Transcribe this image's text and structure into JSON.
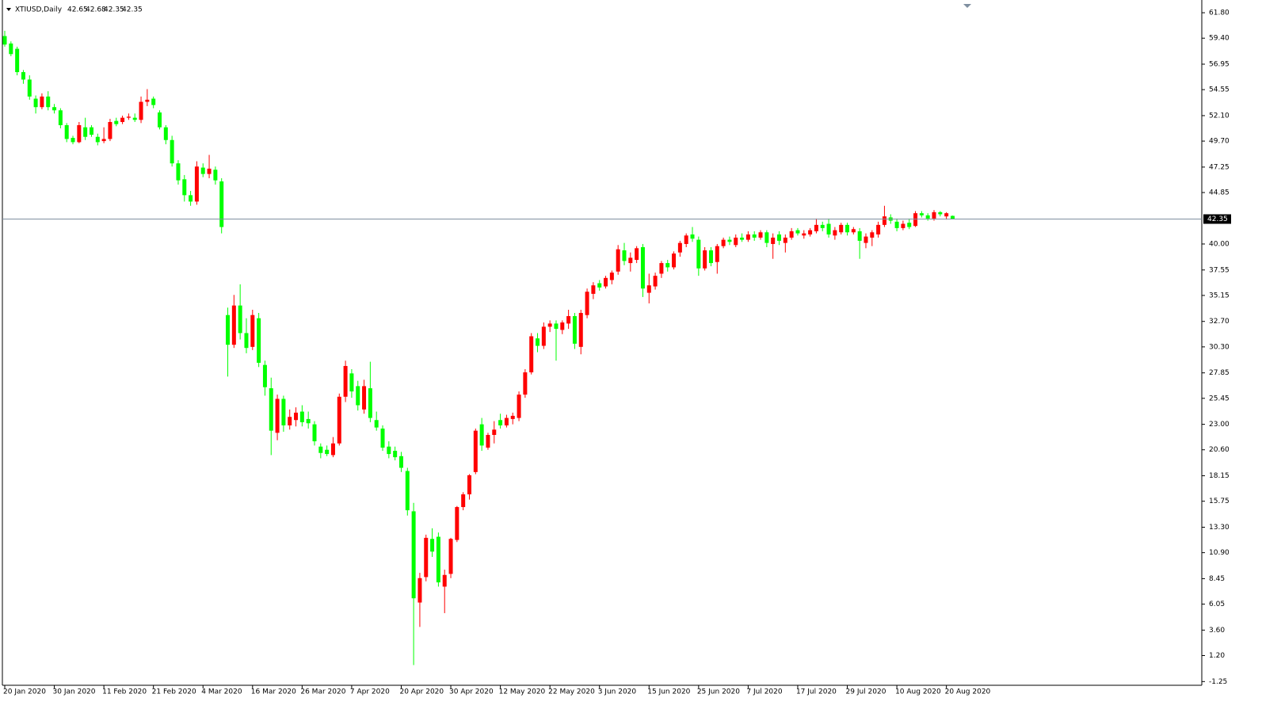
{
  "chart_data": {
    "type": "candlestick",
    "title": "XTIUSD,Daily",
    "up_color": "#ff0000",
    "down_color": "#00ff00",
    "price_line_color": "#7f8fa0",
    "categories": [
      "20 Jan 2020",
      null,
      null,
      null,
      null,
      null,
      null,
      null,
      "30 Jan 2020",
      null,
      null,
      null,
      null,
      null,
      null,
      null,
      "11 Feb 2020",
      null,
      null,
      null,
      null,
      null,
      null,
      null,
      "21 Feb 2020",
      null,
      null,
      null,
      null,
      null,
      null,
      null,
      "4 Mar 2020",
      null,
      null,
      null,
      null,
      null,
      null,
      null,
      "16 Mar 2020",
      null,
      null,
      null,
      null,
      null,
      null,
      null,
      "26 Mar 2020",
      null,
      null,
      null,
      null,
      null,
      null,
      null,
      "7 Apr 2020",
      null,
      null,
      null,
      null,
      null,
      null,
      null,
      "20 Apr 2020",
      null,
      null,
      null,
      null,
      null,
      null,
      null,
      "30 Apr 2020",
      null,
      null,
      null,
      null,
      null,
      null,
      null,
      "12 May 2020",
      null,
      null,
      null,
      null,
      null,
      null,
      null,
      "22 May 2020",
      null,
      null,
      null,
      null,
      null,
      null,
      null,
      "3 Jun 2020",
      null,
      null,
      null,
      null,
      null,
      null,
      null,
      "15 Jun 2020",
      null,
      null,
      null,
      null,
      null,
      null,
      null,
      "25 Jun 2020",
      null,
      null,
      null,
      null,
      null,
      null,
      null,
      "7 Jul 2020",
      null,
      null,
      null,
      null,
      null,
      null,
      null,
      "17 Jul 2020",
      null,
      null,
      null,
      null,
      null,
      null,
      null,
      "29 Jul 2020",
      null,
      null,
      null,
      null,
      null,
      null,
      null,
      "10 Aug 2020",
      null,
      null,
      null,
      null,
      null,
      null,
      null,
      "20 Aug 2020",
      null
    ],
    "open": [
      59.6,
      58.9,
      58.4,
      56.2,
      55.5,
      53.7,
      52.9,
      53.9,
      52.9,
      52.6,
      51.2,
      50.0,
      49.6,
      51.0,
      51.0,
      50.1,
      49.7,
      49.9,
      51.6,
      51.5,
      51.9,
      51.9,
      51.7,
      53.4,
      53.7,
      52.4,
      51.0,
      49.8,
      47.6,
      46.1,
      44.6,
      44.0,
      47.2,
      46.6,
      47.0,
      45.9,
      33.3,
      30.5,
      34.2,
      31.6,
      30.3,
      33.0,
      28.6,
      26.4,
      22.2,
      25.4,
      22.9,
      23.4,
      24.2,
      23.5,
      23.0,
      20.9,
      20.6,
      20.1,
      21.2,
      25.6,
      27.8,
      26.6,
      24.4,
      26.4,
      23.4,
      22.6,
      20.9,
      20.5,
      20.0,
      18.6,
      14.8,
      6.2,
      8.6,
      12.2,
      12.4,
      7.7,
      8.9,
      12.1,
      15.2,
      16.4,
      18.5,
      23.0,
      20.8,
      22.0,
      23.4,
      22.9,
      23.5,
      23.6,
      25.8,
      27.9,
      31.1,
      30.4,
      32.2,
      32.5,
      31.9,
      32.5,
      33.2,
      30.3,
      33.3,
      35.3,
      36.3,
      36.0,
      36.6,
      37.4,
      39.4,
      38.2,
      38.5,
      39.7,
      35.4,
      36.0,
      37.2,
      38.2,
      37.8,
      39.2,
      40.0,
      40.9,
      40.4,
      37.7,
      39.4,
      38.3,
      39.8,
      40.4,
      39.9,
      40.6,
      40.4,
      40.9,
      40.6,
      41.1,
      40.0,
      40.9,
      40.1,
      40.6,
      41.3,
      40.8,
      40.9,
      41.2,
      41.8,
      41.9,
      40.8,
      41.1,
      41.8,
      41.1,
      41.2,
      40.1,
      40.6,
      40.9,
      41.8,
      42.5,
      42.1,
      41.5,
      42.0,
      41.7,
      42.9,
      42.7,
      42.4,
      43.0,
      42.6,
      42.65
    ],
    "high": [
      60.1,
      59.1,
      58.6,
      56.4,
      55.9,
      54.0,
      54.2,
      54.4,
      53.2,
      52.8,
      51.4,
      50.2,
      51.5,
      51.9,
      51.2,
      50.4,
      51.0,
      51.8,
      51.9,
      52.1,
      52.3,
      52.3,
      53.9,
      54.6,
      53.9,
      52.6,
      51.2,
      50.2,
      47.9,
      46.5,
      45.0,
      47.8,
      47.6,
      48.4,
      47.3,
      46.2,
      34.0,
      35.2,
      36.2,
      33.0,
      33.8,
      33.5,
      29.0,
      27.4,
      25.8,
      25.7,
      24.4,
      24.6,
      24.8,
      24.2,
      23.3,
      21.2,
      21.0,
      21.8,
      25.9,
      29.0,
      28.2,
      27.1,
      27.2,
      28.9,
      24.2,
      22.9,
      21.4,
      20.9,
      20.4,
      18.9,
      15.6,
      9.0,
      12.6,
      13.2,
      12.8,
      9.3,
      12.3,
      15.3,
      16.6,
      18.3,
      22.6,
      23.6,
      22.2,
      23.3,
      24.0,
      23.9,
      24.1,
      26.1,
      28.2,
      31.6,
      31.6,
      32.6,
      32.8,
      32.8,
      32.8,
      33.8,
      33.5,
      33.8,
      35.8,
      36.4,
      36.6,
      37.0,
      37.5,
      39.9,
      40.1,
      39.2,
      39.8,
      40.0,
      37.2,
      37.3,
      38.4,
      38.5,
      39.3,
      40.3,
      41.0,
      41.6,
      40.7,
      39.7,
      39.7,
      40.0,
      40.6,
      40.7,
      40.9,
      41.0,
      41.2,
      41.2,
      41.3,
      41.3,
      41.0,
      41.2,
      40.9,
      41.5,
      41.5,
      41.3,
      41.5,
      42.4,
      42.1,
      42.4,
      41.6,
      42.0,
      42.0,
      41.6,
      41.5,
      41.0,
      41.3,
      42.1,
      43.6,
      42.8,
      42.4,
      42.2,
      42.4,
      43.1,
      43.1,
      42.9,
      43.2,
      43.1,
      43.0,
      42.68
    ],
    "low": [
      58.6,
      57.7,
      55.9,
      55.1,
      53.6,
      52.3,
      52.7,
      52.6,
      52.3,
      50.9,
      49.6,
      49.4,
      49.5,
      49.8,
      50.1,
      49.3,
      49.5,
      49.7,
      51.1,
      51.3,
      51.7,
      51.5,
      51.4,
      53.0,
      52.8,
      50.8,
      49.4,
      47.3,
      45.6,
      44.0,
      43.6,
      43.7,
      46.3,
      46.2,
      45.6,
      41.0,
      27.5,
      30.2,
      31.0,
      29.7,
      30.0,
      28.4,
      25.7,
      20.1,
      21.5,
      22.3,
      22.5,
      22.8,
      22.8,
      22.6,
      21.0,
      19.8,
      20.0,
      19.9,
      21.0,
      25.1,
      25.5,
      24.3,
      24.0,
      23.2,
      22.4,
      20.5,
      19.8,
      19.6,
      18.5,
      14.4,
      0.3,
      3.9,
      8.2,
      10.5,
      7.7,
      5.2,
      8.5,
      11.9,
      14.9,
      15.9,
      18.3,
      20.5,
      20.6,
      21.2,
      22.6,
      22.7,
      23.0,
      23.3,
      25.5,
      27.7,
      29.8,
      30.1,
      31.7,
      29.0,
      31.5,
      32.0,
      30.1,
      29.6,
      33.0,
      34.8,
      35.6,
      35.8,
      36.2,
      37.1,
      38.0,
      37.4,
      38.2,
      35.0,
      34.4,
      35.7,
      36.8,
      37.4,
      37.6,
      38.8,
      39.7,
      40.2,
      37.0,
      37.5,
      37.9,
      37.2,
      39.6,
      39.9,
      39.7,
      40.2,
      40.2,
      40.3,
      40.4,
      39.7,
      38.6,
      39.9,
      39.2,
      40.4,
      40.8,
      40.5,
      40.7,
      41.0,
      41.2,
      40.6,
      40.4,
      40.9,
      40.8,
      40.9,
      38.6,
      39.6,
      39.8,
      40.6,
      41.6,
      41.9,
      41.2,
      41.3,
      41.4,
      41.6,
      42.5,
      42.2,
      42.2,
      42.6,
      42.3,
      42.35
    ],
    "close": [
      58.8,
      57.9,
      56.2,
      55.5,
      53.9,
      52.9,
      53.9,
      52.9,
      52.6,
      51.2,
      49.9,
      49.6,
      51.2,
      50.1,
      50.3,
      49.6,
      49.9,
      51.5,
      51.3,
      51.9,
      52.0,
      51.7,
      53.4,
      53.6,
      53.1,
      51.0,
      49.8,
      47.6,
      46.0,
      44.6,
      44.0,
      47.3,
      46.6,
      47.1,
      46.0,
      41.6,
      30.5,
      34.2,
      31.6,
      30.2,
      33.3,
      28.8,
      26.5,
      22.4,
      25.4,
      22.9,
      23.7,
      24.1,
      23.2,
      23.1,
      21.4,
      20.3,
      20.2,
      21.2,
      25.6,
      28.5,
      26.1,
      24.8,
      26.6,
      23.6,
      22.7,
      20.8,
      20.2,
      19.9,
      18.9,
      14.9,
      6.6,
      8.5,
      12.3,
      11.0,
      8.1,
      8.8,
      12.2,
      15.2,
      16.4,
      18.2,
      22.4,
      21.0,
      22.0,
      22.5,
      22.9,
      23.6,
      23.8,
      25.8,
      27.9,
      31.3,
      30.4,
      32.2,
      32.5,
      32.0,
      32.6,
      33.2,
      30.6,
      33.5,
      35.5,
      36.1,
      35.9,
      36.8,
      37.3,
      39.5,
      38.4,
      38.7,
      39.6,
      35.8,
      36.1,
      37.0,
      38.2,
      37.8,
      39.1,
      40.1,
      40.8,
      40.5,
      37.7,
      39.4,
      38.2,
      39.8,
      40.4,
      40.2,
      40.6,
      40.4,
      40.9,
      40.6,
      41.1,
      40.1,
      40.6,
      40.3,
      40.6,
      41.2,
      41.0,
      41.0,
      41.3,
      41.8,
      41.5,
      40.9,
      41.3,
      41.8,
      41.1,
      41.4,
      40.3,
      40.7,
      41.1,
      41.8,
      42.6,
      42.2,
      41.5,
      41.9,
      41.6,
      42.9,
      42.7,
      42.4,
      43.0,
      42.8,
      42.9,
      42.35
    ],
    "ylim": [
      -1.6,
      63.0
    ],
    "yticks": [
      {
        "value": 61.8,
        "label": "61.80"
      },
      {
        "value": 59.4,
        "label": "59.40"
      },
      56.95,
      54.55,
      {
        "value": 52.1,
        "label": "52.10"
      },
      {
        "value": 49.7,
        "label": "49.70"
      },
      47.25,
      44.85,
      {
        "value": 40,
        "label": "40.00"
      },
      37.55,
      35.15,
      {
        "value": 32.7,
        "label": "32.70"
      },
      {
        "value": 30.3,
        "label": "30.30"
      },
      27.85,
      25.45,
      {
        "value": 23,
        "label": "23.00"
      },
      {
        "value": 20.6,
        "label": "20.60"
      },
      18.15,
      15.75,
      {
        "value": 13.3,
        "label": "13.30"
      },
      {
        "value": 10.9,
        "label": "10.90"
      },
      8.45,
      6.05,
      {
        "value": 3.6,
        "label": "3.60"
      },
      {
        "value": 1.2,
        "label": "1.20"
      },
      -1.25
    ]
  }
}
